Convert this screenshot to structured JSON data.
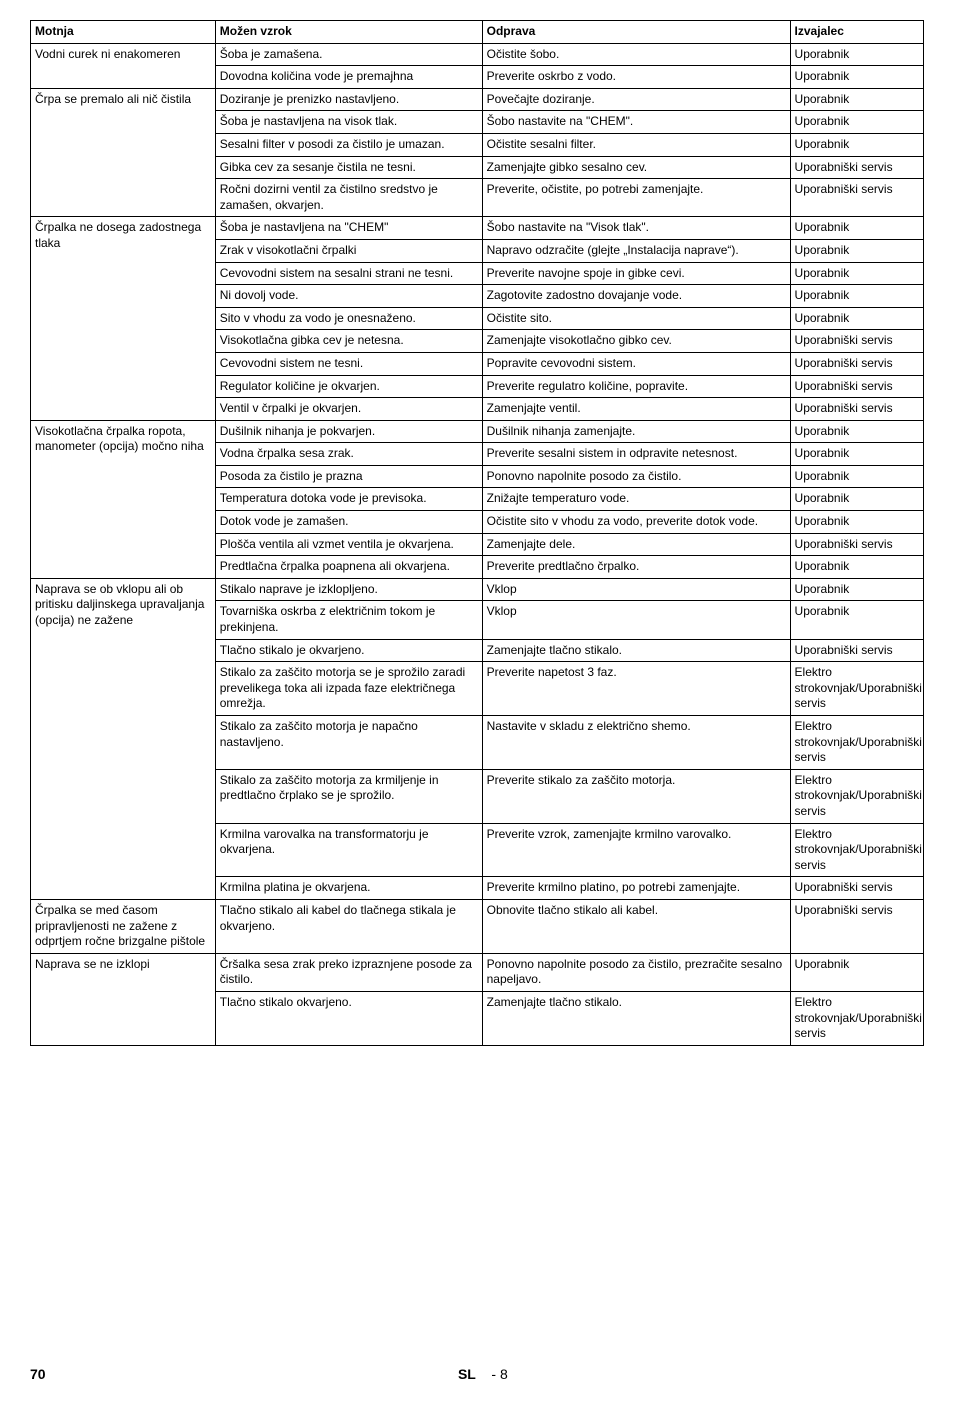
{
  "headers": [
    "Motnja",
    "Možen vzrok",
    "Odprava",
    "Izvajalec"
  ],
  "groups": [
    {
      "motnja": "Vodni curek ni enakomeren",
      "rows": [
        [
          "Šoba je zamašena.",
          "Očistite šobo.",
          "Uporabnik"
        ],
        [
          "Dovodna količina vode je premajhna",
          "Preverite oskrbo z vodo.",
          "Uporabnik"
        ]
      ]
    },
    {
      "motnja": "Črpa se premalo ali nič čistila",
      "rows": [
        [
          "Doziranje je prenizko nastavljeno.",
          "Povečajte doziranje.",
          "Uporabnik"
        ],
        [
          "Šoba je nastavljena na visok tlak.",
          "Šobo nastavite na \"CHEM\".",
          "Uporabnik"
        ],
        [
          "Sesalni filter v posodi za čistilo je umazan.",
          "Očistite sesalni filter.",
          "Uporabnik"
        ],
        [
          "Gibka cev za sesanje čistila ne tesni.",
          "Zamenjajte gibko sesalno cev.",
          "Uporabniški servis"
        ],
        [
          "Ročni dozirni ventil za čistilno sredstvo je zamašen, okvarjen.",
          "Preverite, očistite, po potrebi zamenjajte.",
          "Uporabniški servis"
        ]
      ]
    },
    {
      "motnja": "Črpalka ne dosega zadostnega tlaka",
      "rows": [
        [
          "Šoba je nastavljena na \"CHEM\"",
          "Šobo nastavite na \"Visok tlak\".",
          "Uporabnik"
        ],
        [
          "Zrak v visokotlačni črpalki",
          "Napravo odzračite (glejte „Instalacija naprave“).",
          "Uporabnik"
        ],
        [
          "Cevovodni sistem na sesalni strani ne tesni.",
          "Preverite navojne spoje in gibke cevi.",
          "Uporabnik"
        ],
        [
          "Ni dovolj vode.",
          "Zagotovite zadostno dovajanje vode.",
          "Uporabnik"
        ],
        [
          "Sito v vhodu za vodo je onesnaženo.",
          "Očistite sito.",
          "Uporabnik"
        ],
        [
          "Visokotlačna gibka cev je netesna.",
          "Zamenjajte visokotlačno gibko cev.",
          "Uporabniški servis"
        ],
        [
          "Cevovodni sistem ne tesni.",
          "Popravite cevovodni sistem.",
          "Uporabniški servis"
        ],
        [
          "Regulator količine je okvarjen.",
          "Preverite regulatro količine, popravite.",
          "Uporabniški servis"
        ],
        [
          "Ventil v črpalki je okvarjen.",
          "Zamenjajte ventil.",
          "Uporabniški servis"
        ]
      ]
    },
    {
      "motnja": "Visokotlačna črpalka ropota, manometer (opcija) močno niha",
      "rows": [
        [
          "Dušilnik nihanja je pokvarjen.",
          "Dušilnik nihanja zamenjajte.",
          "Uporabnik"
        ],
        [
          "Vodna črpalka sesa zrak.",
          "Preverite sesalni sistem in odpravite netesnost.",
          "Uporabnik"
        ],
        [
          "Posoda za čistilo je prazna",
          "Ponovno napolnite posodo za čistilo.",
          "Uporabnik"
        ],
        [
          "Temperatura dotoka vode je previsoka.",
          "Znižajte temperaturo vode.",
          "Uporabnik"
        ],
        [
          "Dotok vode je zamašen.",
          "Očistite sito v vhodu za vodo, preverite dotok vode.",
          "Uporabnik"
        ],
        [
          "Plošča ventila ali vzmet ventila je okvarjena.",
          "Zamenjajte dele.",
          "Uporabniški servis"
        ],
        [
          "Predtlačna črpalka poapnena ali okvarjena.",
          "Preverite predtlačno črpalko.",
          "Uporabnik"
        ]
      ]
    },
    {
      "motnja": "Naprava se ob vklopu ali ob pritisku daljinskega upravaljanja (opcija) ne zažene",
      "rows": [
        [
          "Stikalo naprave je izklopljeno.",
          "Vklop",
          "Uporabnik"
        ],
        [
          "Tovarniška oskrba z električnim tokom je prekinjena.",
          "Vklop",
          "Uporabnik"
        ],
        [
          "Tlačno stikalo je okvarjeno.",
          "Zamenjajte tlačno stikalo.",
          "Uporabniški servis"
        ],
        [
          "Stikalo za zaščito motorja se je sprožilo zaradi prevelikega toka ali izpada faze električnega omrežja.",
          "Preverite napetost 3 faz.",
          "Elektro strokovnjak/Uporabniški servis"
        ],
        [
          "Stikalo za zaščito motorja je napačno nastavljeno.",
          "Nastavite v skladu z električno shemo.",
          "Elektro strokovnjak/Uporabniški servis"
        ],
        [
          "Stikalo za zaščito motorja za krmiljenje in predtlačno črplako se je sprožilo.",
          "Preverite stikalo za zaščito motorja.",
          "Elektro strokovnjak/Uporabniški servis"
        ],
        [
          "Krmilna varovalka na transformatorju je okvarjena.",
          "Preverite vzrok, zamenjajte krmilno varovalko.",
          "Elektro strokovnjak/Uporabniški servis"
        ],
        [
          "Krmilna platina je okvarjena.",
          "Preverite krmilno platino, po potrebi zamenjajte.",
          "Uporabniški servis"
        ]
      ]
    },
    {
      "motnja": "Črpalka se med časom pripravljenosti ne zažene z odprtjem ročne brizgalne pištole",
      "rows": [
        [
          "Tlačno stikalo ali kabel do tlačnega stikala je okvarjeno.",
          "Obnovite tlačno stikalo ali kabel.",
          "Uporabniški servis"
        ]
      ]
    },
    {
      "motnja": "Naprava se ne izklopi",
      "rows": [
        [
          "Čršalka sesa zrak preko izpraznjene posode za čistilo.",
          "Ponovno napolnite posodo za čistilo, prezračite sesalno napeljavo.",
          "Uporabnik"
        ],
        [
          "Tlačno stikalo okvarjeno.",
          "Zamenjajte tlačno stikalo.",
          "Elektro strokovnjak/Uporabniški servis"
        ]
      ]
    }
  ],
  "footer": {
    "page": "70",
    "lang": "SL",
    "sub": "- 8"
  }
}
